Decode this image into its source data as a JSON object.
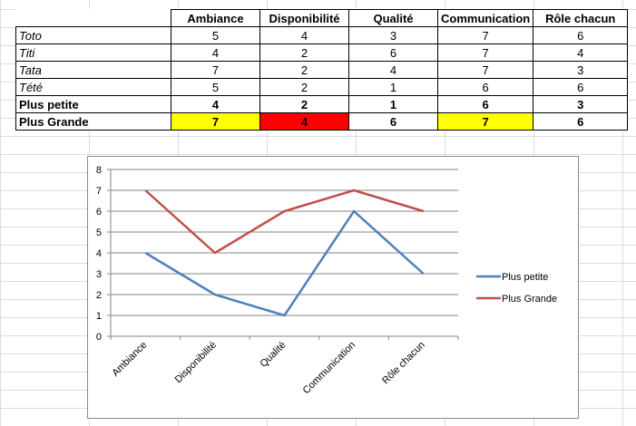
{
  "table": {
    "headers": [
      "Ambiance",
      "Disponibilité",
      "Qualité",
      "Communication",
      "Rôle chacun"
    ],
    "rows": [
      {
        "name": "Toto",
        "values": [
          "5",
          "4",
          "3",
          "7",
          "6"
        ],
        "style": "italic"
      },
      {
        "name": "Titi",
        "values": [
          "4",
          "2",
          "6",
          "7",
          "4"
        ],
        "style": "italic"
      },
      {
        "name": "Tata",
        "values": [
          "7",
          "2",
          "4",
          "7",
          "3"
        ],
        "style": "italic"
      },
      {
        "name": "Tété",
        "values": [
          "5",
          "2",
          "1",
          "6",
          "6"
        ],
        "style": "italic"
      },
      {
        "name": "Plus petite",
        "values": [
          "4",
          "2",
          "1",
          "6",
          "3"
        ],
        "style": "bold"
      },
      {
        "name": "Plus Grande",
        "values": [
          "7",
          "4",
          "6",
          "7",
          "6"
        ],
        "style": "bold"
      }
    ],
    "highlight_colors": {
      "yellow": "#ffff00",
      "red": "#ff0000"
    }
  },
  "chart_data": {
    "type": "line",
    "categories": [
      "Ambiance",
      "Disponibilité",
      "Qualité",
      "Communication",
      "Rôle chacun"
    ],
    "series": [
      {
        "name": "Plus petite",
        "values": [
          4,
          2,
          1,
          6,
          3
        ],
        "color": "#4f81bd"
      },
      {
        "name": "Plus Grande",
        "values": [
          7,
          4,
          6,
          7,
          6
        ],
        "color": "#c0504d"
      }
    ],
    "ylim": [
      0,
      8
    ],
    "yticks": [
      "0",
      "1",
      "2",
      "3",
      "4",
      "5",
      "6",
      "7",
      "8"
    ],
    "grid": true,
    "legend": "right"
  }
}
